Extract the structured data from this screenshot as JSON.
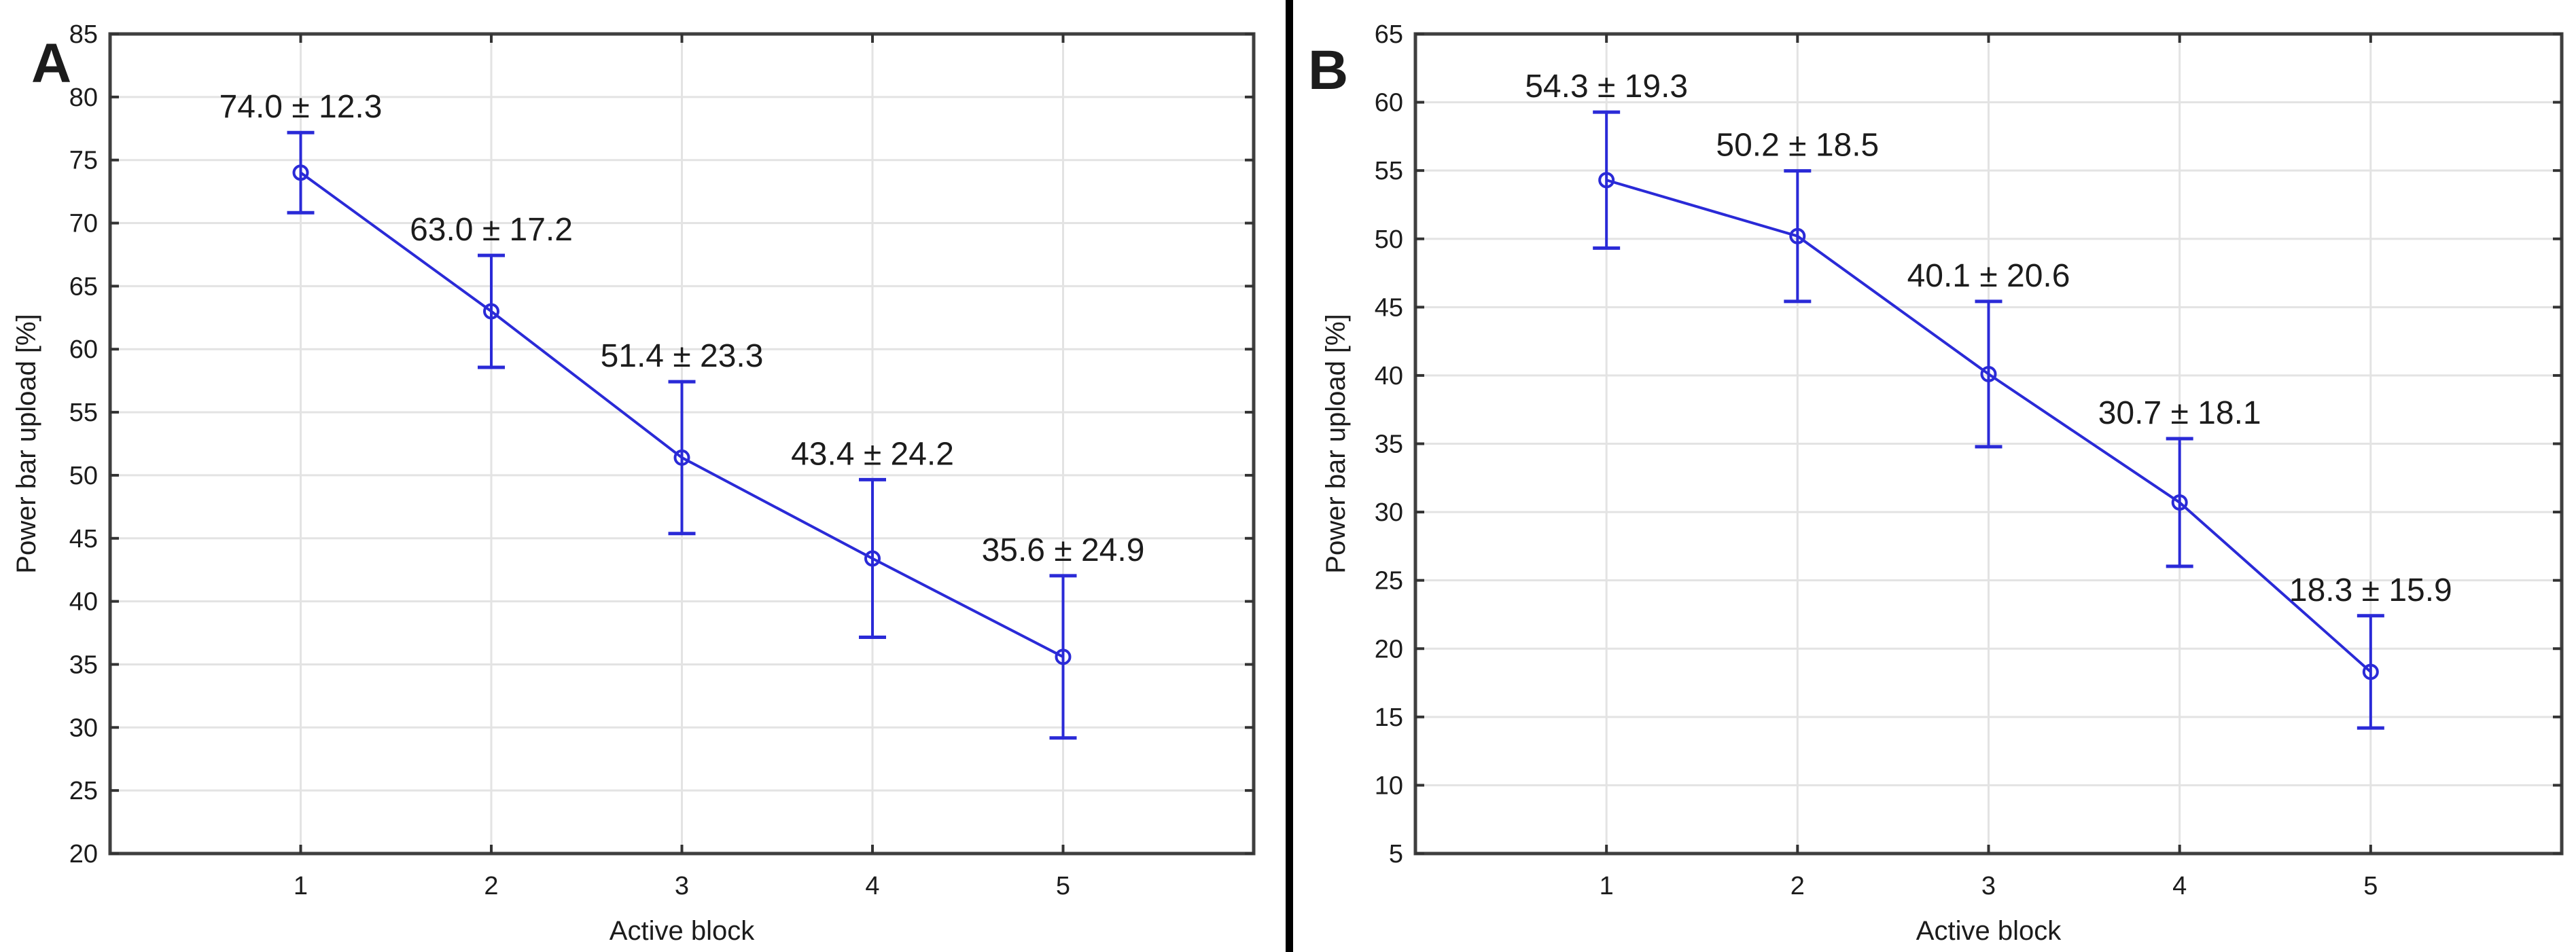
{
  "figure": {
    "background_color": "#ffffff",
    "divider_color": "#000000",
    "series_color": "#2a2ad7",
    "grid_color": "#e3e3e3",
    "frame_color": "#3f3f3f",
    "tick_color": "#333333",
    "text_color": "#1c1c1c",
    "marker_style": "open-circle"
  },
  "chart_data": [
    {
      "type": "line",
      "panel_letter": "A",
      "xlabel": "Active block",
      "ylabel": "Power bar upload [%]",
      "x": [
        1,
        2,
        3,
        4,
        5
      ],
      "x_tick_labels": [
        "1",
        "2",
        "3",
        "4",
        "5"
      ],
      "mean": [
        74.0,
        63.0,
        51.4,
        43.4,
        35.6
      ],
      "sd": [
        12.3,
        17.2,
        23.3,
        24.2,
        24.9
      ],
      "error_bar_drawn": [
        3.18,
        4.44,
        6.02,
        6.25,
        6.43
      ],
      "point_labels": [
        "74.0 ± 12.3",
        "63.0 ± 17.2",
        "51.4 ± 23.3",
        "43.4 ± 24.2",
        "35.6 ± 24.9"
      ],
      "ylim": [
        20,
        85
      ],
      "yticks": [
        20,
        25,
        30,
        35,
        40,
        45,
        50,
        55,
        60,
        65,
        70,
        75,
        80,
        85
      ],
      "grid": true,
      "legend": null
    },
    {
      "type": "line",
      "panel_letter": "B",
      "xlabel": "Active block",
      "ylabel": "Power bar upload [%]",
      "x": [
        1,
        2,
        3,
        4,
        5
      ],
      "x_tick_labels": [
        "1",
        "2",
        "3",
        "4",
        "5"
      ],
      "mean": [
        54.3,
        50.2,
        40.1,
        30.7,
        18.3
      ],
      "sd": [
        19.3,
        18.5,
        20.6,
        18.1,
        15.9
      ],
      "error_bar_drawn": [
        4.98,
        4.78,
        5.32,
        4.67,
        4.11
      ],
      "point_labels": [
        "54.3 ± 19.3",
        "50.2 ± 18.5",
        "40.1 ± 20.6",
        "30.7 ± 18.1",
        "18.3 ± 15.9"
      ],
      "ylim": [
        5,
        65
      ],
      "yticks": [
        5,
        10,
        15,
        20,
        25,
        30,
        35,
        40,
        45,
        50,
        55,
        60,
        65
      ],
      "grid": true,
      "legend": null
    }
  ]
}
